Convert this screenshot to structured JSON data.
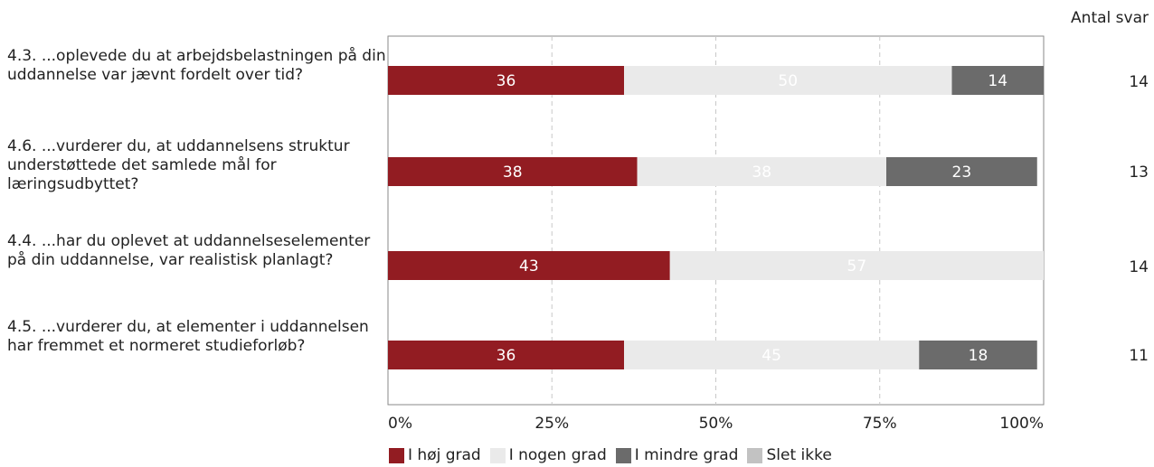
{
  "chart_data": {
    "type": "bar",
    "orientation": "horizontal",
    "stacked": true,
    "count_header": "Antal svar",
    "categories": [
      "4.3. ...oplevede du at arbejdsbelastningen på din uddannelse var jævnt fordelt over tid?",
      "4.6. ...vurderer du, at uddannelsens struktur understøttede det samlede mål for læringsudbyttet?",
      "4.4. ...har du oplevet at uddannelseselementer på din uddannelse, var realistisk planlagt?",
      "4.5. ...vurderer du, at elementer i uddannelsen har fremmet et normeret studieforløb?"
    ],
    "counts": [
      "14",
      "13",
      "14",
      "11"
    ],
    "series": [
      {
        "name": "I høj grad",
        "color": "#921c22",
        "label_color": "#ffffff",
        "values": [
          36,
          38,
          43,
          36
        ]
      },
      {
        "name": "I nogen grad",
        "color": "#eaeaea",
        "label_color": "#ffffff",
        "values": [
          50,
          38,
          57,
          45
        ]
      },
      {
        "name": "I mindre grad",
        "color": "#6b6b6b",
        "label_color": "#ffffff",
        "values": [
          14,
          23,
          0,
          18
        ]
      },
      {
        "name": "Slet ikke",
        "color": "#c2c2c2",
        "label_color": "#ffffff",
        "values": [
          0,
          0,
          0,
          0
        ]
      }
    ],
    "xlim": [
      0,
      100
    ],
    "xticks": [
      "0%",
      "25%",
      "50%",
      "75%",
      "100%"
    ],
    "grid": true,
    "legend_position": "bottom"
  }
}
